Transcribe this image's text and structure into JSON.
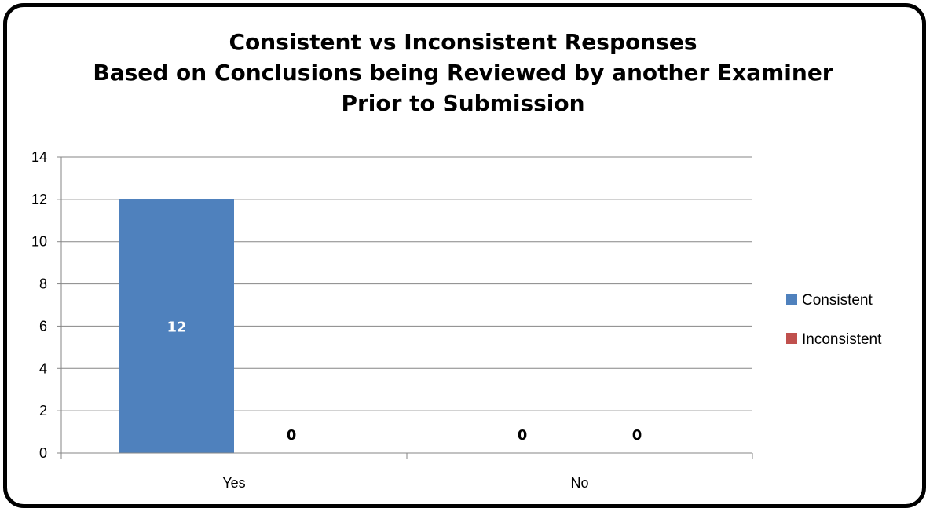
{
  "chart_data": {
    "type": "bar",
    "title_lines": [
      "Consistent vs Inconsistent Responses",
      "Based on Conclusions being Reviewed by another Examiner",
      "Prior to Submission"
    ],
    "categories": [
      "Yes",
      "No"
    ],
    "series": [
      {
        "name": "Consistent",
        "values": [
          12,
          0
        ],
        "color": "#4F81BD"
      },
      {
        "name": "Inconsistent",
        "values": [
          0,
          0
        ],
        "color": "#C0504D"
      }
    ],
    "ylim": [
      0,
      14
    ],
    "yticks": [
      "0",
      "2",
      "4",
      "6",
      "8",
      "10",
      "12",
      "14"
    ],
    "grid": true,
    "legend": "right",
    "data_labels": true
  }
}
